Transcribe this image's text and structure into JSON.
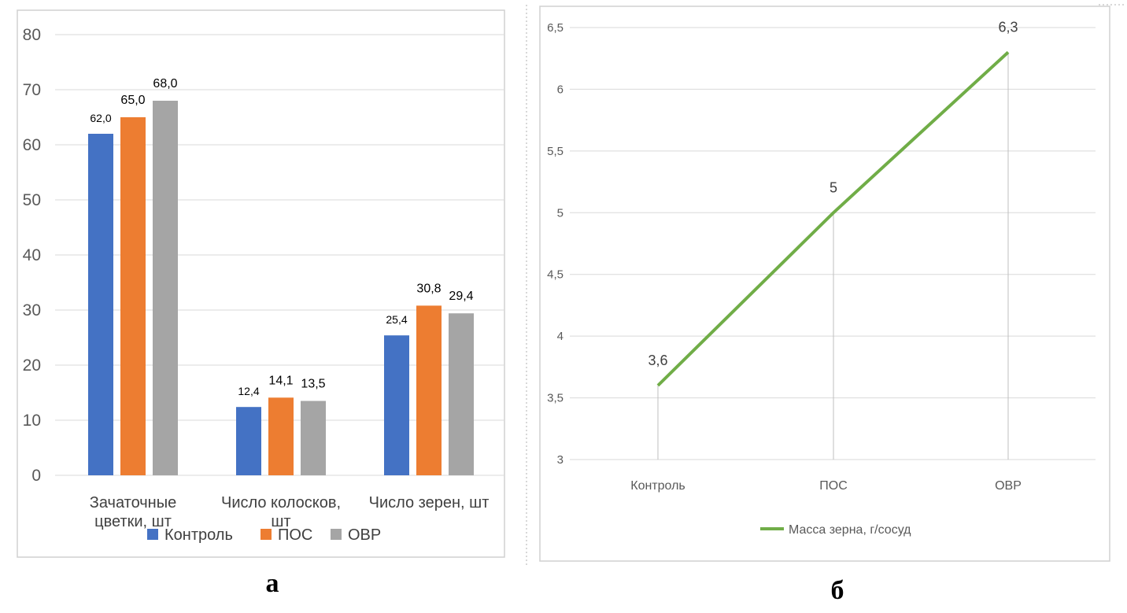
{
  "colors": {
    "control": "#4472C4",
    "pos": "#ED7D31",
    "ovr": "#A5A5A5",
    "line": "#70AD47",
    "grid": "#D9D9D9",
    "border": "#D0D0D0"
  },
  "chart_data": [
    {
      "id": "a",
      "type": "bar",
      "panel_label": "а",
      "categories": [
        [
          "Зачаточные",
          "цветки, шт"
        ],
        [
          "Число колосков,",
          "шт"
        ],
        [
          "Число зерен, шт"
        ]
      ],
      "series": [
        {
          "name": "Контроль",
          "values": [
            62.0,
            12.4,
            25.4
          ],
          "labels": [
            "62,0",
            "12,4",
            "25,4"
          ]
        },
        {
          "name": "ПОС",
          "values": [
            65.0,
            14.1,
            30.8
          ],
          "labels": [
            "65,0",
            "14,1",
            "30,8"
          ]
        },
        {
          "name": "ОВР",
          "values": [
            68.0,
            13.5,
            29.4
          ],
          "labels": [
            "68,0",
            "13,5",
            "29,4"
          ]
        }
      ],
      "y_ticks": [
        "0",
        "10",
        "20",
        "30",
        "40",
        "50",
        "60",
        "70",
        "80"
      ],
      "ylim": [
        0,
        80
      ],
      "legend_position": "bottom",
      "grid": true
    },
    {
      "id": "b",
      "type": "line",
      "panel_label": "б",
      "categories": [
        "Контроль",
        "ПОС",
        "ОВР"
      ],
      "series": [
        {
          "name": "Масса зерна, г/сосуд",
          "values": [
            3.6,
            5.0,
            6.3
          ],
          "labels": [
            "3,6",
            "5",
            "6,3"
          ]
        }
      ],
      "y_ticks": [
        "3",
        "3,5",
        "4",
        "4,5",
        "5",
        "5,5",
        "6",
        "6,5"
      ],
      "ylim": [
        3,
        6.5
      ],
      "legend_position": "bottom",
      "grid": true
    }
  ]
}
